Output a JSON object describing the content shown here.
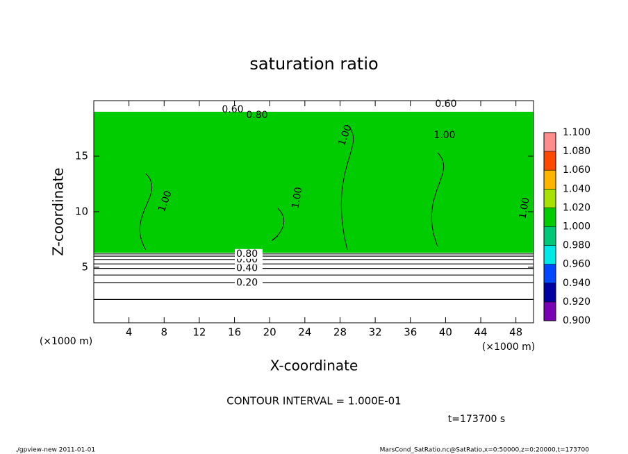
{
  "chart_data": {
    "type": "contour",
    "title": "saturation ratio",
    "xlabel": "X-coordinate",
    "ylabel": "Z-coordinate",
    "x_unit": "(×1000 m)",
    "y_unit": "(×1000 m)",
    "xlim": [
      0,
      50
    ],
    "xticks": [
      4,
      8,
      12,
      16,
      20,
      24,
      28,
      32,
      36,
      40,
      44,
      48
    ],
    "ylim": [
      0,
      20
    ],
    "yticks": [
      5,
      10,
      15
    ],
    "filled_region": {
      "zlim": [
        6.3,
        19
      ]
    },
    "contours": [
      {
        "level": 0.1,
        "z": 2.1
      },
      {
        "level": 0.2,
        "z": 3.6,
        "label": "0.20"
      },
      {
        "level": 0.3,
        "z": 4.3
      },
      {
        "level": 0.4,
        "z": 4.9,
        "label": "0.40"
      },
      {
        "level": 0.5,
        "z": 5.3
      },
      {
        "level": 0.6,
        "z": 5.7,
        "label": "0.60"
      },
      {
        "level": 0.7,
        "z": 6.0
      },
      {
        "level": 0.8,
        "z": 6.2,
        "label": "0.80"
      }
    ],
    "annotations": [
      "1.00",
      "1.00",
      "1.00",
      "1.00",
      "1.00",
      "0.60",
      "0.80",
      "0.60"
    ],
    "colorbar": {
      "levels": [
        {
          "value": 0.9,
          "label": "0.900"
        },
        {
          "value": 0.92,
          "label": "0.920"
        },
        {
          "value": 0.94,
          "label": "0.940"
        },
        {
          "value": 0.96,
          "label": "0.960"
        },
        {
          "value": 0.98,
          "label": "0.980"
        },
        {
          "value": 1.0,
          "label": "1.000"
        },
        {
          "value": 1.02,
          "label": "1.020"
        },
        {
          "value": 1.04,
          "label": "1.040"
        },
        {
          "value": 1.06,
          "label": "1.060"
        },
        {
          "value": 1.08,
          "label": "1.080"
        },
        {
          "value": 1.1,
          "label": "1.100"
        }
      ],
      "colors": [
        "#7a00b4",
        "#0000a0",
        "#0048ff",
        "#00e8e8",
        "#00c878",
        "#00cc00",
        "#a8e000",
        "#ffb400",
        "#ff4800",
        "#ff8c8c"
      ]
    },
    "contour_interval": "CONTOUR INTERVAL = 1.000E-01",
    "time_label": "t=173700 s",
    "footer_left": "./gpview-new   2011-01-01",
    "footer_right": "MarsCond_SatRatio.nc@SatRatio,x=0:50000,z=0:20000,t=173700"
  }
}
